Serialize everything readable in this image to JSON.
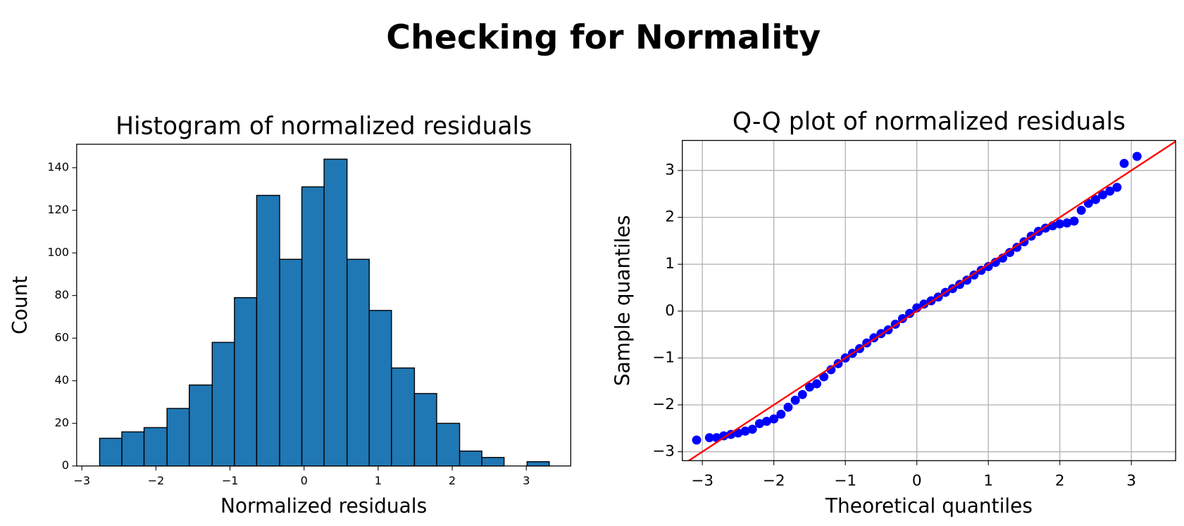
{
  "title": "Checking for Normality",
  "chart_data": [
    {
      "type": "histogram",
      "title": "Histogram of normalized residuals",
      "xlabel": "Normalized residuals",
      "ylabel": "Count",
      "bins": [
        -2.76,
        -2.46,
        -2.16,
        -1.85,
        -1.55,
        -1.24,
        -0.94,
        -0.64,
        -0.33,
        -0.03,
        0.27,
        0.58,
        0.88,
        1.18,
        1.49,
        1.79,
        2.1,
        2.4,
        2.7,
        3.01,
        3.31
      ],
      "values": [
        13,
        16,
        18,
        27,
        38,
        58,
        79,
        127,
        97,
        131,
        144,
        97,
        73,
        46,
        34,
        20,
        7,
        4,
        0,
        2
      ],
      "color": "#1f77b4",
      "edgecolor": "#000000",
      "xlim": [
        -3.07,
        3.6
      ],
      "ylim": [
        0,
        151
      ],
      "xticks": [
        {
          "value": -3,
          "label": "−3"
        },
        {
          "value": -2,
          "label": "−2"
        },
        {
          "value": -1,
          "label": "−1"
        },
        0,
        1,
        2,
        3
      ],
      "yticks": [
        0,
        20,
        40,
        60,
        80,
        100,
        120,
        140
      ],
      "grid": false
    },
    {
      "type": "scatter",
      "title": "Q-Q plot of normalized residuals",
      "xlabel": "Theoretical quantiles",
      "ylabel": "Sample quantiles",
      "x": [
        -3.08,
        -2.9,
        -2.8,
        -2.7,
        -2.6,
        -2.5,
        -2.4,
        -2.3,
        -2.2,
        -2.1,
        -2.0,
        -1.9,
        -1.8,
        -1.7,
        -1.6,
        -1.5,
        -1.4,
        -1.3,
        -1.2,
        -1.1,
        -1.0,
        -0.9,
        -0.8,
        -0.7,
        -0.6,
        -0.5,
        -0.4,
        -0.3,
        -0.2,
        -0.1,
        0,
        0.1,
        0.2,
        0.3,
        0.4,
        0.5,
        0.6,
        0.7,
        0.8,
        0.9,
        1.0,
        1.1,
        1.2,
        1.3,
        1.4,
        1.5,
        1.6,
        1.7,
        1.8,
        1.9,
        2.0,
        2.1,
        2.2,
        2.3,
        2.4,
        2.5,
        2.6,
        2.7,
        2.8,
        2.9,
        3.08
      ],
      "y": [
        -2.75,
        -2.7,
        -2.7,
        -2.66,
        -2.63,
        -2.6,
        -2.56,
        -2.52,
        -2.4,
        -2.35,
        -2.3,
        -2.2,
        -2.05,
        -1.9,
        -1.78,
        -1.62,
        -1.55,
        -1.4,
        -1.25,
        -1.12,
        -1.0,
        -0.9,
        -0.8,
        -0.68,
        -0.57,
        -0.48,
        -0.4,
        -0.28,
        -0.16,
        -0.05,
        0.07,
        0.15,
        0.22,
        0.3,
        0.4,
        0.48,
        0.57,
        0.66,
        0.77,
        0.87,
        0.95,
        1.04,
        1.13,
        1.25,
        1.36,
        1.48,
        1.6,
        1.7,
        1.77,
        1.82,
        1.86,
        1.88,
        1.92,
        2.15,
        2.3,
        2.38,
        2.48,
        2.56,
        2.64,
        3.15,
        3.3
      ],
      "color": "#0000ff",
      "reference_line": {
        "slope": 1,
        "intercept": 0,
        "color": "#ff0000"
      },
      "xlim": [
        -3.28,
        3.62
      ],
      "ylim": [
        -3.19,
        3.64
      ],
      "xticks": [
        {
          "value": -3,
          "label": "−3"
        },
        {
          "value": -2,
          "label": "−2"
        },
        {
          "value": -1,
          "label": "−1"
        },
        0,
        1,
        2,
        3
      ],
      "yticks": [
        {
          "value": -3,
          "label": "−3"
        },
        {
          "value": -2,
          "label": "−2"
        },
        {
          "value": -1,
          "label": "−1"
        },
        0,
        1,
        2,
        3
      ],
      "grid": true
    }
  ]
}
